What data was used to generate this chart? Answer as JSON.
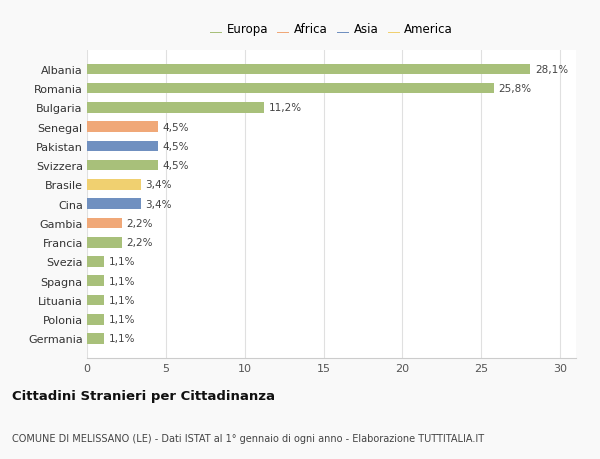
{
  "categories": [
    "Germania",
    "Polonia",
    "Lituania",
    "Spagna",
    "Svezia",
    "Francia",
    "Gambia",
    "Cina",
    "Brasile",
    "Svizzera",
    "Pakistan",
    "Senegal",
    "Bulgaria",
    "Romania",
    "Albania"
  ],
  "values": [
    1.1,
    1.1,
    1.1,
    1.1,
    1.1,
    2.2,
    2.2,
    3.4,
    3.4,
    4.5,
    4.5,
    4.5,
    11.2,
    25.8,
    28.1
  ],
  "labels": [
    "1,1%",
    "1,1%",
    "1,1%",
    "1,1%",
    "1,1%",
    "2,2%",
    "2,2%",
    "3,4%",
    "3,4%",
    "4,5%",
    "4,5%",
    "4,5%",
    "11,2%",
    "25,8%",
    "28,1%"
  ],
  "colors": [
    "#a8c07a",
    "#a8c07a",
    "#a8c07a",
    "#a8c07a",
    "#a8c07a",
    "#a8c07a",
    "#f0a878",
    "#7090c0",
    "#f0d070",
    "#a8c07a",
    "#7090c0",
    "#f0a878",
    "#a8c07a",
    "#a8c07a",
    "#a8c07a"
  ],
  "legend_labels": [
    "Europa",
    "Africa",
    "Asia",
    "America"
  ],
  "legend_colors": [
    "#a8c07a",
    "#f0a878",
    "#7090c0",
    "#f0d070"
  ],
  "title": "Cittadini Stranieri per Cittadinanza",
  "subtitle": "COMUNE DI MELISSANO (LE) - Dati ISTAT al 1° gennaio di ogni anno - Elaborazione TUTTITALIA.IT",
  "xlim": [
    0,
    31
  ],
  "xticks": [
    0,
    5,
    10,
    15,
    20,
    25,
    30
  ],
  "background_color": "#f9f9f9",
  "bar_background": "#ffffff"
}
